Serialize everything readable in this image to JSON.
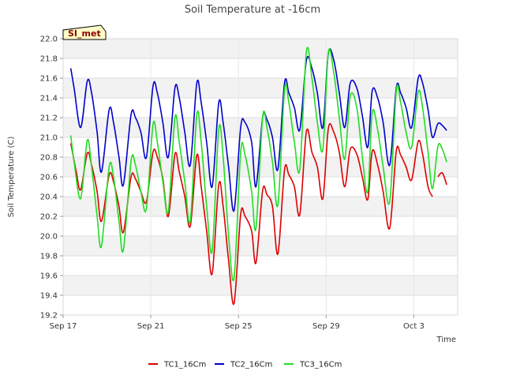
{
  "chart_data": {
    "type": "line",
    "title": "Soil Temperature at -16cm",
    "xlabel": "Time",
    "ylabel": "Soil Temperature (C)",
    "badge": "SI_met",
    "xlim": [
      0,
      18
    ],
    "ylim": [
      19.2,
      22.0
    ],
    "yticks": [
      19.2,
      19.4,
      19.6,
      19.8,
      20.0,
      20.2,
      20.4,
      20.6,
      20.8,
      21.0,
      21.2,
      21.4,
      21.6,
      21.8,
      22.0
    ],
    "ytick_labels": [
      "19.2",
      "19.4",
      "19.6",
      "19.8",
      "20.0",
      "20.2",
      "20.4",
      "20.6",
      "20.8",
      "21.0",
      "21.2",
      "21.4",
      "21.6",
      "21.8",
      "22.0"
    ],
    "xticks": [
      0,
      4,
      8,
      12,
      16
    ],
    "xtick_labels": [
      "Sep 17",
      "Sep 21",
      "Sep 25",
      "Sep 29",
      "Oct 3"
    ],
    "grid": true,
    "legend_position": "bottom",
    "series": [
      {
        "name": "TC1_16Cm",
        "color": "#dd0000",
        "x": [
          0.35,
          0.6,
          0.8,
          1.1,
          1.3,
          1.55,
          1.75,
          2.1,
          2.3,
          2.55,
          2.75,
          3.1,
          3.3,
          3.55,
          3.8,
          4.1,
          4.3,
          4.55,
          4.8,
          5.1,
          5.3,
          5.55,
          5.8,
          6.1,
          6.3,
          6.55,
          6.8,
          7.1,
          7.3,
          7.55,
          7.8,
          8.1,
          8.3,
          8.6,
          8.8,
          9.1,
          9.3,
          9.55,
          9.8,
          10.1,
          10.3,
          10.55,
          10.8,
          11.1,
          11.35,
          11.6,
          11.85,
          12.1,
          12.35,
          12.6,
          12.85,
          13.1,
          13.4,
          13.65,
          13.9,
          14.1,
          14.35,
          14.6,
          14.9,
          15.2,
          15.4,
          15.65,
          15.9,
          16.2,
          16.4,
          16.65,
          16.85
        ],
        "values": [
          20.94,
          20.65,
          20.47,
          20.84,
          20.72,
          20.45,
          20.15,
          20.62,
          20.55,
          20.3,
          20.04,
          20.6,
          20.58,
          20.45,
          20.35,
          20.85,
          20.8,
          20.58,
          20.2,
          20.83,
          20.65,
          20.4,
          20.1,
          20.82,
          20.5,
          20.05,
          19.62,
          20.52,
          20.3,
          19.75,
          19.32,
          20.22,
          20.2,
          20.05,
          19.73,
          20.46,
          20.42,
          20.3,
          19.82,
          20.67,
          20.62,
          20.5,
          20.22,
          21.06,
          20.85,
          20.7,
          20.38,
          21.09,
          21.05,
          20.85,
          20.5,
          20.88,
          20.83,
          20.6,
          20.37,
          20.86,
          20.72,
          20.45,
          20.08,
          20.86,
          20.82,
          20.7,
          20.57,
          20.96,
          20.83,
          20.5,
          20.4
        ],
        "x_tail": [
          17.1,
          17.3,
          17.5
        ],
        "values_tail": [
          20.6,
          20.64,
          20.52
        ]
      },
      {
        "name": "TC2_16Cm",
        "color": "#0000cc",
        "x": [
          0.35,
          0.5,
          0.8,
          1.1,
          1.3,
          1.55,
          1.75,
          2.1,
          2.3,
          2.55,
          2.75,
          3.1,
          3.3,
          3.55,
          3.8,
          4.1,
          4.3,
          4.55,
          4.8,
          5.1,
          5.3,
          5.55,
          5.8,
          6.1,
          6.3,
          6.55,
          6.8,
          7.1,
          7.3,
          7.55,
          7.8,
          8.1,
          8.3,
          8.6,
          8.8,
          9.1,
          9.3,
          9.55,
          9.8,
          10.1,
          10.3,
          10.55,
          10.8,
          11.1,
          11.35,
          11.6,
          11.85,
          12.1,
          12.35,
          12.6,
          12.85,
          13.1,
          13.4,
          13.65,
          13.9,
          14.1,
          14.35,
          14.6,
          14.9,
          15.2,
          15.4,
          15.65,
          15.9,
          16.2,
          16.4,
          16.65,
          16.85,
          17.1,
          17.3,
          17.5
        ],
        "values": [
          21.7,
          21.5,
          21.1,
          21.57,
          21.45,
          21.05,
          20.65,
          21.28,
          21.15,
          20.8,
          20.52,
          21.23,
          21.2,
          21.05,
          20.8,
          21.52,
          21.45,
          21.15,
          20.8,
          21.5,
          21.4,
          21.05,
          20.72,
          21.55,
          21.35,
          20.95,
          20.5,
          21.35,
          21.15,
          20.7,
          20.26,
          21.1,
          21.15,
          20.95,
          20.5,
          21.2,
          21.18,
          21.0,
          20.68,
          21.55,
          21.45,
          21.3,
          21.08,
          21.78,
          21.7,
          21.45,
          21.1,
          21.85,
          21.78,
          21.45,
          21.1,
          21.55,
          21.5,
          21.22,
          20.9,
          21.47,
          21.4,
          21.15,
          20.72,
          21.5,
          21.45,
          21.3,
          21.1,
          21.6,
          21.55,
          21.28,
          21.0,
          21.14,
          21.12,
          21.07
        ]
      },
      {
        "name": "TC3_16Cm",
        "color": "#22dd22",
        "x": [
          0.35,
          0.5,
          0.8,
          1.1,
          1.3,
          1.55,
          1.75,
          2.1,
          2.3,
          2.55,
          2.75,
          3.1,
          3.3,
          3.55,
          3.8,
          4.1,
          4.3,
          4.55,
          4.8,
          5.1,
          5.3,
          5.55,
          5.8,
          6.1,
          6.3,
          6.55,
          6.8,
          7.1,
          7.3,
          7.55,
          7.8,
          8.1,
          8.3,
          8.6,
          8.8,
          9.1,
          9.3,
          9.55,
          9.8,
          10.1,
          10.3,
          10.55,
          10.8,
          11.1,
          11.35,
          11.6,
          11.85,
          12.1,
          12.35,
          12.6,
          12.85,
          13.1,
          13.4,
          13.65,
          13.9,
          14.1,
          14.35,
          14.6,
          14.9,
          15.2,
          15.4,
          15.65,
          15.9,
          16.2,
          16.4,
          16.65,
          16.85,
          17.1,
          17.3,
          17.5
        ],
        "values": [
          21.02,
          20.75,
          20.38,
          20.97,
          20.7,
          20.2,
          19.9,
          20.7,
          20.6,
          20.15,
          19.86,
          20.76,
          20.72,
          20.45,
          20.28,
          21.13,
          20.95,
          20.55,
          20.25,
          21.2,
          20.95,
          20.55,
          20.15,
          21.23,
          20.95,
          20.3,
          19.85,
          21.08,
          20.8,
          20.0,
          19.58,
          20.85,
          20.82,
          20.45,
          20.08,
          21.2,
          21.1,
          20.75,
          20.32,
          21.48,
          21.35,
          20.95,
          20.68,
          21.87,
          21.6,
          21.15,
          20.88,
          21.86,
          21.65,
          21.2,
          20.78,
          21.42,
          21.3,
          20.8,
          20.45,
          21.25,
          21.08,
          20.7,
          20.35,
          21.47,
          21.35,
          21.05,
          20.9,
          21.46,
          21.3,
          20.85,
          20.48,
          20.91,
          20.88,
          20.75
        ]
      }
    ]
  }
}
